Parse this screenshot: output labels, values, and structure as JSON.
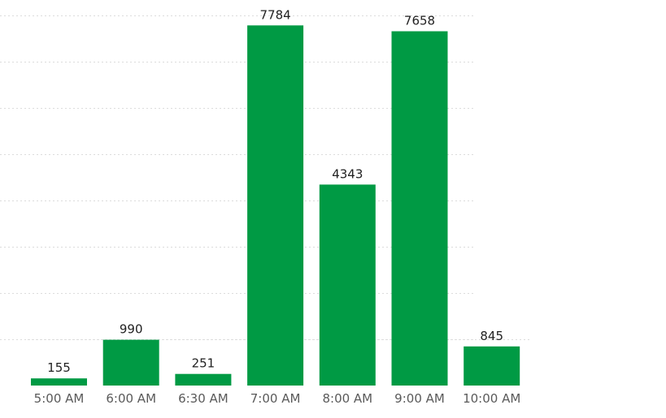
{
  "chart_data": {
    "type": "bar",
    "categories": [
      "5:00 AM",
      "6:00 AM",
      "6:30 AM",
      "7:00 AM",
      "8:00 AM",
      "9:00 AM",
      "10:00 AM"
    ],
    "values": [
      155,
      990,
      251,
      7784,
      4343,
      7658,
      845
    ],
    "data_labels": [
      "155",
      "990",
      "251",
      "7784",
      "4343",
      "7658",
      "845"
    ],
    "title": "",
    "xlabel": "",
    "ylabel": "",
    "ylim": [
      0,
      8000
    ],
    "grid": true,
    "legend": "none",
    "bar_color": "#009A44"
  }
}
